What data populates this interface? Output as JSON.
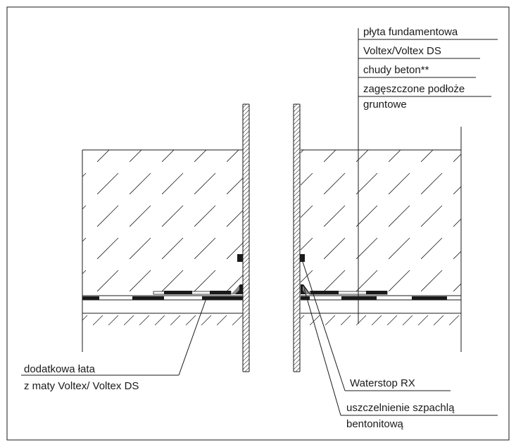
{
  "labels": {
    "layer_1": "płyta fundamentowa",
    "layer_2": "Voltex/Voltex DS",
    "layer_3": "chudy beton**",
    "layer_4_line1": "zagęszczone podłoże",
    "layer_4_line2": "gruntowe",
    "patch_line1": "dodatkowa łata",
    "patch_line2": "z maty Voltex/ Voltex DS",
    "waterstop": "Waterstop RX",
    "sealing_line1": "uszczelnienie szpachlą",
    "sealing_line2": "bentonitową"
  },
  "colors": {
    "ink": "#1a1a1a",
    "background": "#ffffff"
  }
}
